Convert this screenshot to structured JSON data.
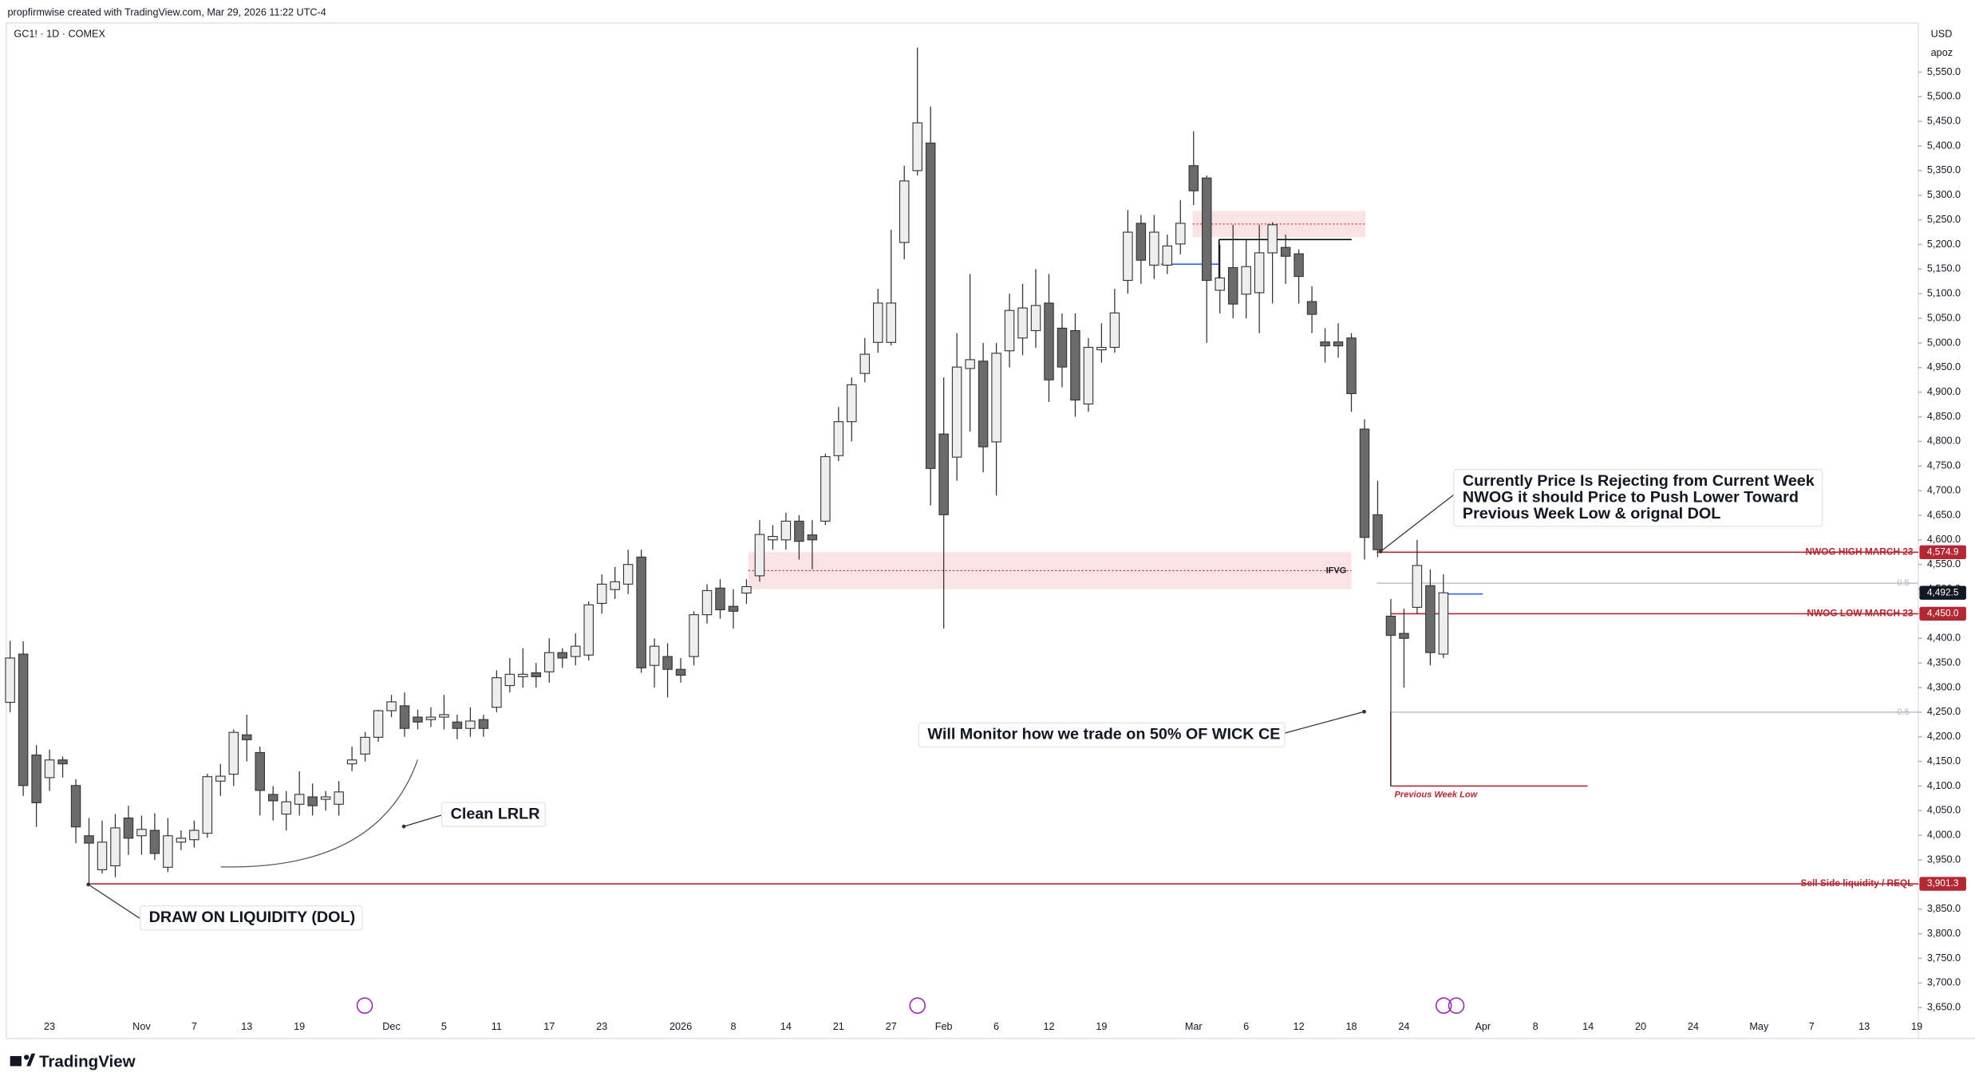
{
  "chart_data": {
    "type": "candlestick",
    "header": "propfirmwise created with TradingView.com, Mar 29, 2026 11:22 UTC-4",
    "title": "GC1! · 1D · COMEX",
    "currency": "USD",
    "scale_note": "apoz",
    "brand": "TradingView",
    "up_color": "#eeeeee",
    "down_color": "#6b6b6b",
    "grid": false,
    "categories": [
      null,
      null,
      null,
      "23",
      null,
      null,
      null,
      null,
      null,
      null,
      "Nov",
      null,
      null,
      null,
      "7",
      null,
      null,
      null,
      "13",
      null,
      null,
      null,
      "19",
      null,
      null,
      null,
      null,
      null,
      null,
      "Dec",
      null,
      null,
      null,
      "5",
      null,
      null,
      null,
      "11",
      null,
      null,
      null,
      "17",
      null,
      null,
      null,
      "23",
      null,
      null,
      null,
      null,
      null,
      "2026",
      null,
      null,
      null,
      "8",
      null,
      null,
      null,
      "14",
      null,
      null,
      null,
      "21",
      null,
      null,
      null,
      "27",
      null,
      null,
      null,
      "Feb",
      null,
      null,
      null,
      "6",
      null,
      null,
      null,
      "12",
      null,
      null,
      null,
      "19",
      null,
      null,
      null,
      null,
      null,
      null,
      "Mar",
      null,
      null,
      null,
      "6",
      null,
      null,
      null,
      "12",
      null,
      null,
      null,
      "18",
      null,
      null,
      null,
      "24",
      null,
      null,
      null,
      null,
      null,
      "Apr",
      null,
      null,
      null,
      "8",
      null,
      null,
      null,
      "14",
      null,
      null,
      null,
      "20",
      null,
      null,
      null,
      "24",
      null,
      null,
      null,
      null,
      "May",
      null,
      null,
      null,
      "7",
      null,
      null,
      null,
      "13",
      null,
      null,
      null,
      "19"
    ],
    "open": [
      4270,
      4368,
      4163,
      4117,
      4153,
      4101,
      3999,
      3930,
      3938,
      4035,
      3999,
      4010,
      3935,
      3986,
      3991,
      4004,
      4110,
      4124,
      4204,
      4168,
      4083,
      4043,
      4063,
      4078,
      4073,
      4063,
      4145,
      4165,
      4199,
      4253,
      4263,
      4240,
      4235,
      4240,
      4230,
      4217,
      4235,
      4260,
      4304,
      4322,
      4330,
      4332,
      4371,
      4363,
      4366,
      4471,
      4499,
      4510,
      4565,
      4345,
      4363,
      4337,
      4363,
      4448,
      4502,
      4465,
      4492,
      4527,
      4600,
      4600,
      4638,
      4610,
      4638,
      4771,
      4840,
      4938,
      5001,
      5001,
      5204,
      5350,
      5406,
      4815,
      4768,
      4948,
      4963,
      4799,
      4984,
      5010,
      5025,
      5081,
      5030,
      5025,
      4876,
      4986,
      4991,
      5127,
      5243,
      5158,
      5158,
      5201,
      5360,
      5335,
      5107,
      5153,
      5099,
      5102,
      5183,
      5194,
      5181,
      5084,
      5002,
      5002,
      5010,
      4825,
      4651,
      4445,
      4410,
      4463,
      4507,
      4368,
      null,
      null,
      null,
      null,
      null,
      null,
      null,
      null,
      null,
      null,
      null,
      null,
      null,
      null,
      null,
      null,
      null,
      null,
      null,
      null,
      null,
      null,
      null,
      null,
      null,
      null,
      null,
      null,
      null,
      null,
      null,
      null,
      null,
      null,
      null,
      null
    ],
    "high": [
      4395,
      4394,
      4183,
      4174,
      4160,
      4114,
      4035,
      4030,
      4043,
      4060,
      4040,
      4045,
      4035,
      4010,
      4030,
      4125,
      4145,
      4215,
      4245,
      4180,
      4100,
      4090,
      4130,
      4105,
      4090,
      4110,
      4180,
      4210,
      4255,
      4285,
      4290,
      4255,
      4260,
      4285,
      4245,
      4260,
      4245,
      4335,
      4360,
      4380,
      4350,
      4400,
      4380,
      4410,
      4475,
      4530,
      4545,
      4580,
      4580,
      4400,
      4390,
      4360,
      4455,
      4510,
      4520,
      4500,
      4520,
      4640,
      4630,
      4655,
      4650,
      4640,
      4775,
      4870,
      4930,
      5010,
      5110,
      5230,
      5360,
      5600,
      5480,
      4930,
      5020,
      5140,
      5000,
      5000,
      5100,
      5120,
      5150,
      5140,
      5060,
      5060,
      5010,
      5040,
      5110,
      5270,
      5260,
      5260,
      5220,
      5290,
      5430,
      5340,
      5200,
      5240,
      5210,
      5240,
      5245,
      5220,
      5190,
      5115,
      5030,
      5040,
      5020,
      4845,
      4720,
      4480,
      4460,
      4600,
      4540,
      4530,
      null,
      null,
      null,
      null,
      null,
      null,
      null,
      null,
      null,
      null,
      null,
      null,
      null,
      null,
      null,
      null,
      null,
      null,
      null,
      null,
      null,
      null,
      null,
      null,
      null,
      null,
      null,
      null,
      null,
      null,
      null,
      null,
      null,
      null,
      null,
      null
    ],
    "low": [
      4250,
      4080,
      4017,
      4090,
      4117,
      3984,
      3901,
      3922,
      3915,
      3960,
      3960,
      3950,
      3925,
      3970,
      3975,
      3995,
      4080,
      4100,
      4150,
      4040,
      4030,
      4010,
      4040,
      4040,
      4050,
      4040,
      4130,
      4150,
      4190,
      4240,
      4200,
      4215,
      4220,
      4215,
      4195,
      4200,
      4200,
      4250,
      4290,
      4300,
      4300,
      4310,
      4340,
      4345,
      4355,
      4450,
      4480,
      4490,
      4330,
      4300,
      4280,
      4310,
      4345,
      4430,
      4440,
      4420,
      4470,
      4515,
      4580,
      4580,
      4560,
      4540,
      4630,
      4760,
      4800,
      4920,
      4980,
      4995,
      5170,
      5340,
      4670,
      4420,
      4720,
      4820,
      4737,
      4690,
      4950,
      4975,
      4990,
      4880,
      4910,
      4850,
      4860,
      4960,
      4980,
      5100,
      5120,
      5130,
      5140,
      5180,
      5280,
      5000,
      5060,
      5050,
      5050,
      5020,
      5080,
      5120,
      5080,
      5020,
      4960,
      4970,
      4860,
      4560,
      4565,
      4100,
      4300,
      4450,
      4345,
      4360,
      null,
      null,
      null,
      null,
      null,
      null,
      null,
      null,
      null,
      null,
      null,
      null,
      null,
      null,
      null,
      null,
      null,
      null,
      null,
      null,
      null,
      null,
      null,
      null,
      null,
      null,
      null,
      null,
      null,
      null,
      null,
      null,
      null,
      null,
      null,
      null
    ],
    "close": [
      4360,
      4101,
      4066,
      4153,
      4145,
      4017,
      3984,
      3986,
      4015,
      3994,
      4012,
      3963,
      3999,
      3994,
      4010,
      4119,
      4120,
      4209,
      4194,
      4091,
      4070,
      4068,
      4083,
      4060,
      4078,
      4088,
      4153,
      4199,
      4253,
      4271,
      4217,
      4230,
      4240,
      4245,
      4217,
      4232,
      4217,
      4320,
      4327,
      4327,
      4322,
      4371,
      4360,
      4384,
      4468,
      4510,
      4515,
      4550,
      4340,
      4384,
      4337,
      4325,
      4448,
      4497,
      4458,
      4455,
      4505,
      4611,
      4607,
      4638,
      4597,
      4600,
      4769,
      4840,
      4915,
      4977,
      5081,
      5081,
      5329,
      5447,
      4745,
      4651,
      4951,
      4966,
      4789,
      4979,
      5066,
      5071,
      5076,
      4925,
      4951,
      4884,
      4991,
      4991,
      5061,
      5225,
      5168,
      5225,
      5197,
      5243,
      5309,
      5127,
      5132,
      5079,
      5155,
      5183,
      5240,
      5176,
      5135,
      5058,
      4994,
      4994,
      4897,
      4605,
      4580,
      4406,
      4400,
      4548,
      4371,
      4492.5,
      null,
      null,
      null,
      null,
      null,
      null,
      null,
      null,
      null,
      null,
      null,
      null,
      null,
      null,
      null,
      null,
      null,
      null,
      null,
      null,
      null,
      null,
      null,
      null,
      null,
      null,
      null,
      null,
      null,
      null,
      null,
      null,
      null,
      null,
      null,
      null
    ],
    "ylim": [
      3590,
      5650
    ],
    "yticks": [
      {
        "value": 3650,
        "label": "3,650.0"
      },
      {
        "value": 3700,
        "label": "3,700.0"
      },
      {
        "value": 3750,
        "label": "3,750.0"
      },
      {
        "value": 3800,
        "label": "3,800.0"
      },
      {
        "value": 3850,
        "label": "3,850.0"
      },
      {
        "value": 3900,
        "label": "3,900.0"
      },
      {
        "value": 3950,
        "label": "3,950.0"
      },
      {
        "value": 4000,
        "label": "4,000.0"
      },
      {
        "value": 4050,
        "label": "4,050.0"
      },
      {
        "value": 4100,
        "label": "4,100.0"
      },
      {
        "value": 4150,
        "label": "4,150.0"
      },
      {
        "value": 4200,
        "label": "4,200.0"
      },
      {
        "value": 4250,
        "label": "4,250.0"
      },
      {
        "value": 4300,
        "label": "4,300.0"
      },
      {
        "value": 4350,
        "label": "4,350.0"
      },
      {
        "value": 4400,
        "label": "4,400.0"
      },
      {
        "value": 4450,
        "label": "4,450.0"
      },
      {
        "value": 4500,
        "label": "4,500.0"
      },
      {
        "value": 4550,
        "label": "4,550.0"
      },
      {
        "value": 4600,
        "label": "4,600.0"
      },
      {
        "value": 4650,
        "label": "4,650.0"
      },
      {
        "value": 4700,
        "label": "4,700.0"
      },
      {
        "value": 4750,
        "label": "4,750.0"
      },
      {
        "value": 4800,
        "label": "4,800.0"
      },
      {
        "value": 4850,
        "label": "4,850.0"
      },
      {
        "value": 4900,
        "label": "4,900.0"
      },
      {
        "value": 4950,
        "label": "4,950.0"
      },
      {
        "value": 5000,
        "label": "5,000.0"
      },
      {
        "value": 5050,
        "label": "5,050.0"
      },
      {
        "value": 5100,
        "label": "5,100.0"
      },
      {
        "value": 5150,
        "label": "5,150.0"
      },
      {
        "value": 5200,
        "label": "5,200.0"
      },
      {
        "value": 5250,
        "label": "5,250.0"
      },
      {
        "value": 5300,
        "label": "5,300.0"
      },
      {
        "value": 5350,
        "label": "5,350.0"
      },
      {
        "value": 5400,
        "label": "5,400.0"
      },
      {
        "value": 5450,
        "label": "5,450.0"
      },
      {
        "value": 5500,
        "label": "5,500.0"
      },
      {
        "value": 5550,
        "label": "5,550.0"
      }
    ],
    "levels": [
      {
        "name": "NWOG HIGH MARCH 23",
        "value": 4574.9,
        "value_label": "4,574.9",
        "color": "#b22833"
      },
      {
        "name": "NWOG LOW MARCH 23",
        "value": 4450.0,
        "value_label": "4,450.0",
        "color": "#b22833"
      },
      {
        "name": "Sell Side liquidity / REQL",
        "value": 3901.3,
        "value_label": "3,901.3",
        "color": "#b22833"
      }
    ],
    "current_price": {
      "value": 4492.5,
      "label": "4,492.5"
    },
    "fib_levels": [
      {
        "label": "0.5",
        "value": 4512
      },
      {
        "label": "0.5",
        "value": 4250
      }
    ],
    "previous_week_low": {
      "label": "Previous Week Low",
      "value": 4100
    },
    "zones": [
      {
        "label": "IFVG",
        "low": 4500,
        "high": 4575
      },
      {
        "low": 5215,
        "high": 5268
      }
    ],
    "lines": [
      {
        "value": 5160,
        "color": "#2962ff"
      },
      {
        "value": 5210,
        "color": "#000000"
      },
      {
        "value": 4490,
        "color": "#2962ff"
      }
    ],
    "annotations": [
      {
        "lines": [
          "Currently Price Is Rejecting from Current Week",
          "NWOG it should Price to Push Lower Toward",
          "Previous Week Low & orignal DOL"
        ]
      },
      {
        "lines": [
          "Will Monitor how we trade on 50% OF WICK CE"
        ]
      },
      {
        "lines": [
          "Clean LRLR"
        ]
      },
      {
        "lines": [
          "DRAW ON LIQUIDITY (DOL)"
        ]
      }
    ]
  }
}
